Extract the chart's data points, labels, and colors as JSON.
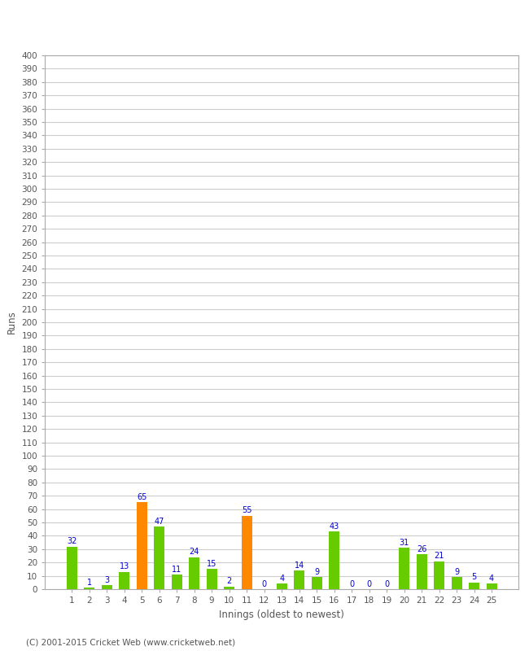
{
  "xlabel": "Innings (oldest to newest)",
  "ylabel": "Runs",
  "categories": [
    1,
    2,
    3,
    4,
    5,
    6,
    7,
    8,
    9,
    10,
    11,
    12,
    13,
    14,
    15,
    16,
    17,
    18,
    19,
    20,
    21,
    22,
    23,
    24,
    25
  ],
  "values": [
    32,
    1,
    3,
    13,
    65,
    47,
    11,
    24,
    15,
    2,
    55,
    0,
    4,
    14,
    9,
    43,
    0,
    0,
    0,
    31,
    26,
    21,
    9,
    5,
    4
  ],
  "bar_colors": [
    "#66cc00",
    "#66cc00",
    "#66cc00",
    "#66cc00",
    "#ff8800",
    "#66cc00",
    "#66cc00",
    "#66cc00",
    "#66cc00",
    "#66cc00",
    "#ff8800",
    "#66cc00",
    "#66cc00",
    "#66cc00",
    "#66cc00",
    "#66cc00",
    "#66cc00",
    "#66cc00",
    "#66cc00",
    "#66cc00",
    "#66cc00",
    "#66cc00",
    "#66cc00",
    "#66cc00",
    "#66cc00"
  ],
  "yticks": [
    0,
    10,
    20,
    30,
    40,
    50,
    60,
    70,
    80,
    90,
    100,
    110,
    120,
    130,
    140,
    150,
    160,
    170,
    180,
    190,
    200,
    210,
    220,
    230,
    240,
    250,
    260,
    270,
    280,
    290,
    300,
    310,
    320,
    330,
    340,
    350,
    360,
    370,
    380,
    390,
    400
  ],
  "ylim": [
    0,
    400
  ],
  "label_color": "#0000cc",
  "footer": "(C) 2001-2015 Cricket Web (www.cricketweb.net)",
  "bg_color": "#ffffff",
  "grid_color": "#cccccc",
  "tick_color": "#555555",
  "bar_width": 0.6
}
